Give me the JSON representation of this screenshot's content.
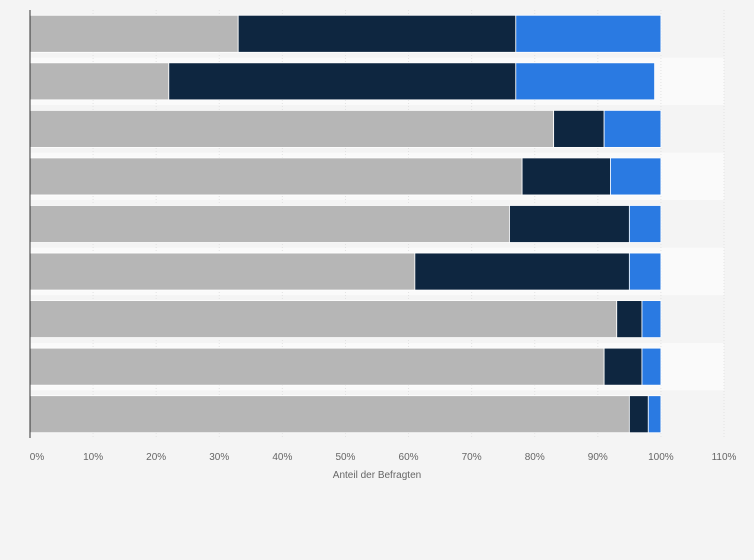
{
  "chart_data": {
    "type": "bar",
    "orientation": "horizontal",
    "stacked": true,
    "title": "",
    "xlabel": "Anteil der Befragten",
    "ylabel": "",
    "xlim": [
      0,
      110
    ],
    "x_ticks": [
      "0%",
      "10%",
      "20%",
      "30%",
      "40%",
      "50%",
      "60%",
      "70%",
      "80%",
      "90%",
      "100%",
      "110%"
    ],
    "categories": [
      "",
      "",
      "",
      "",
      "",
      "",
      "",
      "",
      ""
    ],
    "series": [
      {
        "color": "#b6b6b6",
        "values": [
          33,
          22,
          83,
          78,
          76,
          61,
          93,
          91,
          95
        ]
      },
      {
        "color": "#0e2640",
        "values": [
          44,
          55,
          8,
          14,
          19,
          34,
          4,
          6,
          3
        ]
      },
      {
        "color": "#2a7ae2",
        "values": [
          23,
          22,
          9,
          8,
          5,
          5,
          3,
          3,
          2
        ]
      }
    ],
    "grid": true,
    "legend": "none"
  }
}
